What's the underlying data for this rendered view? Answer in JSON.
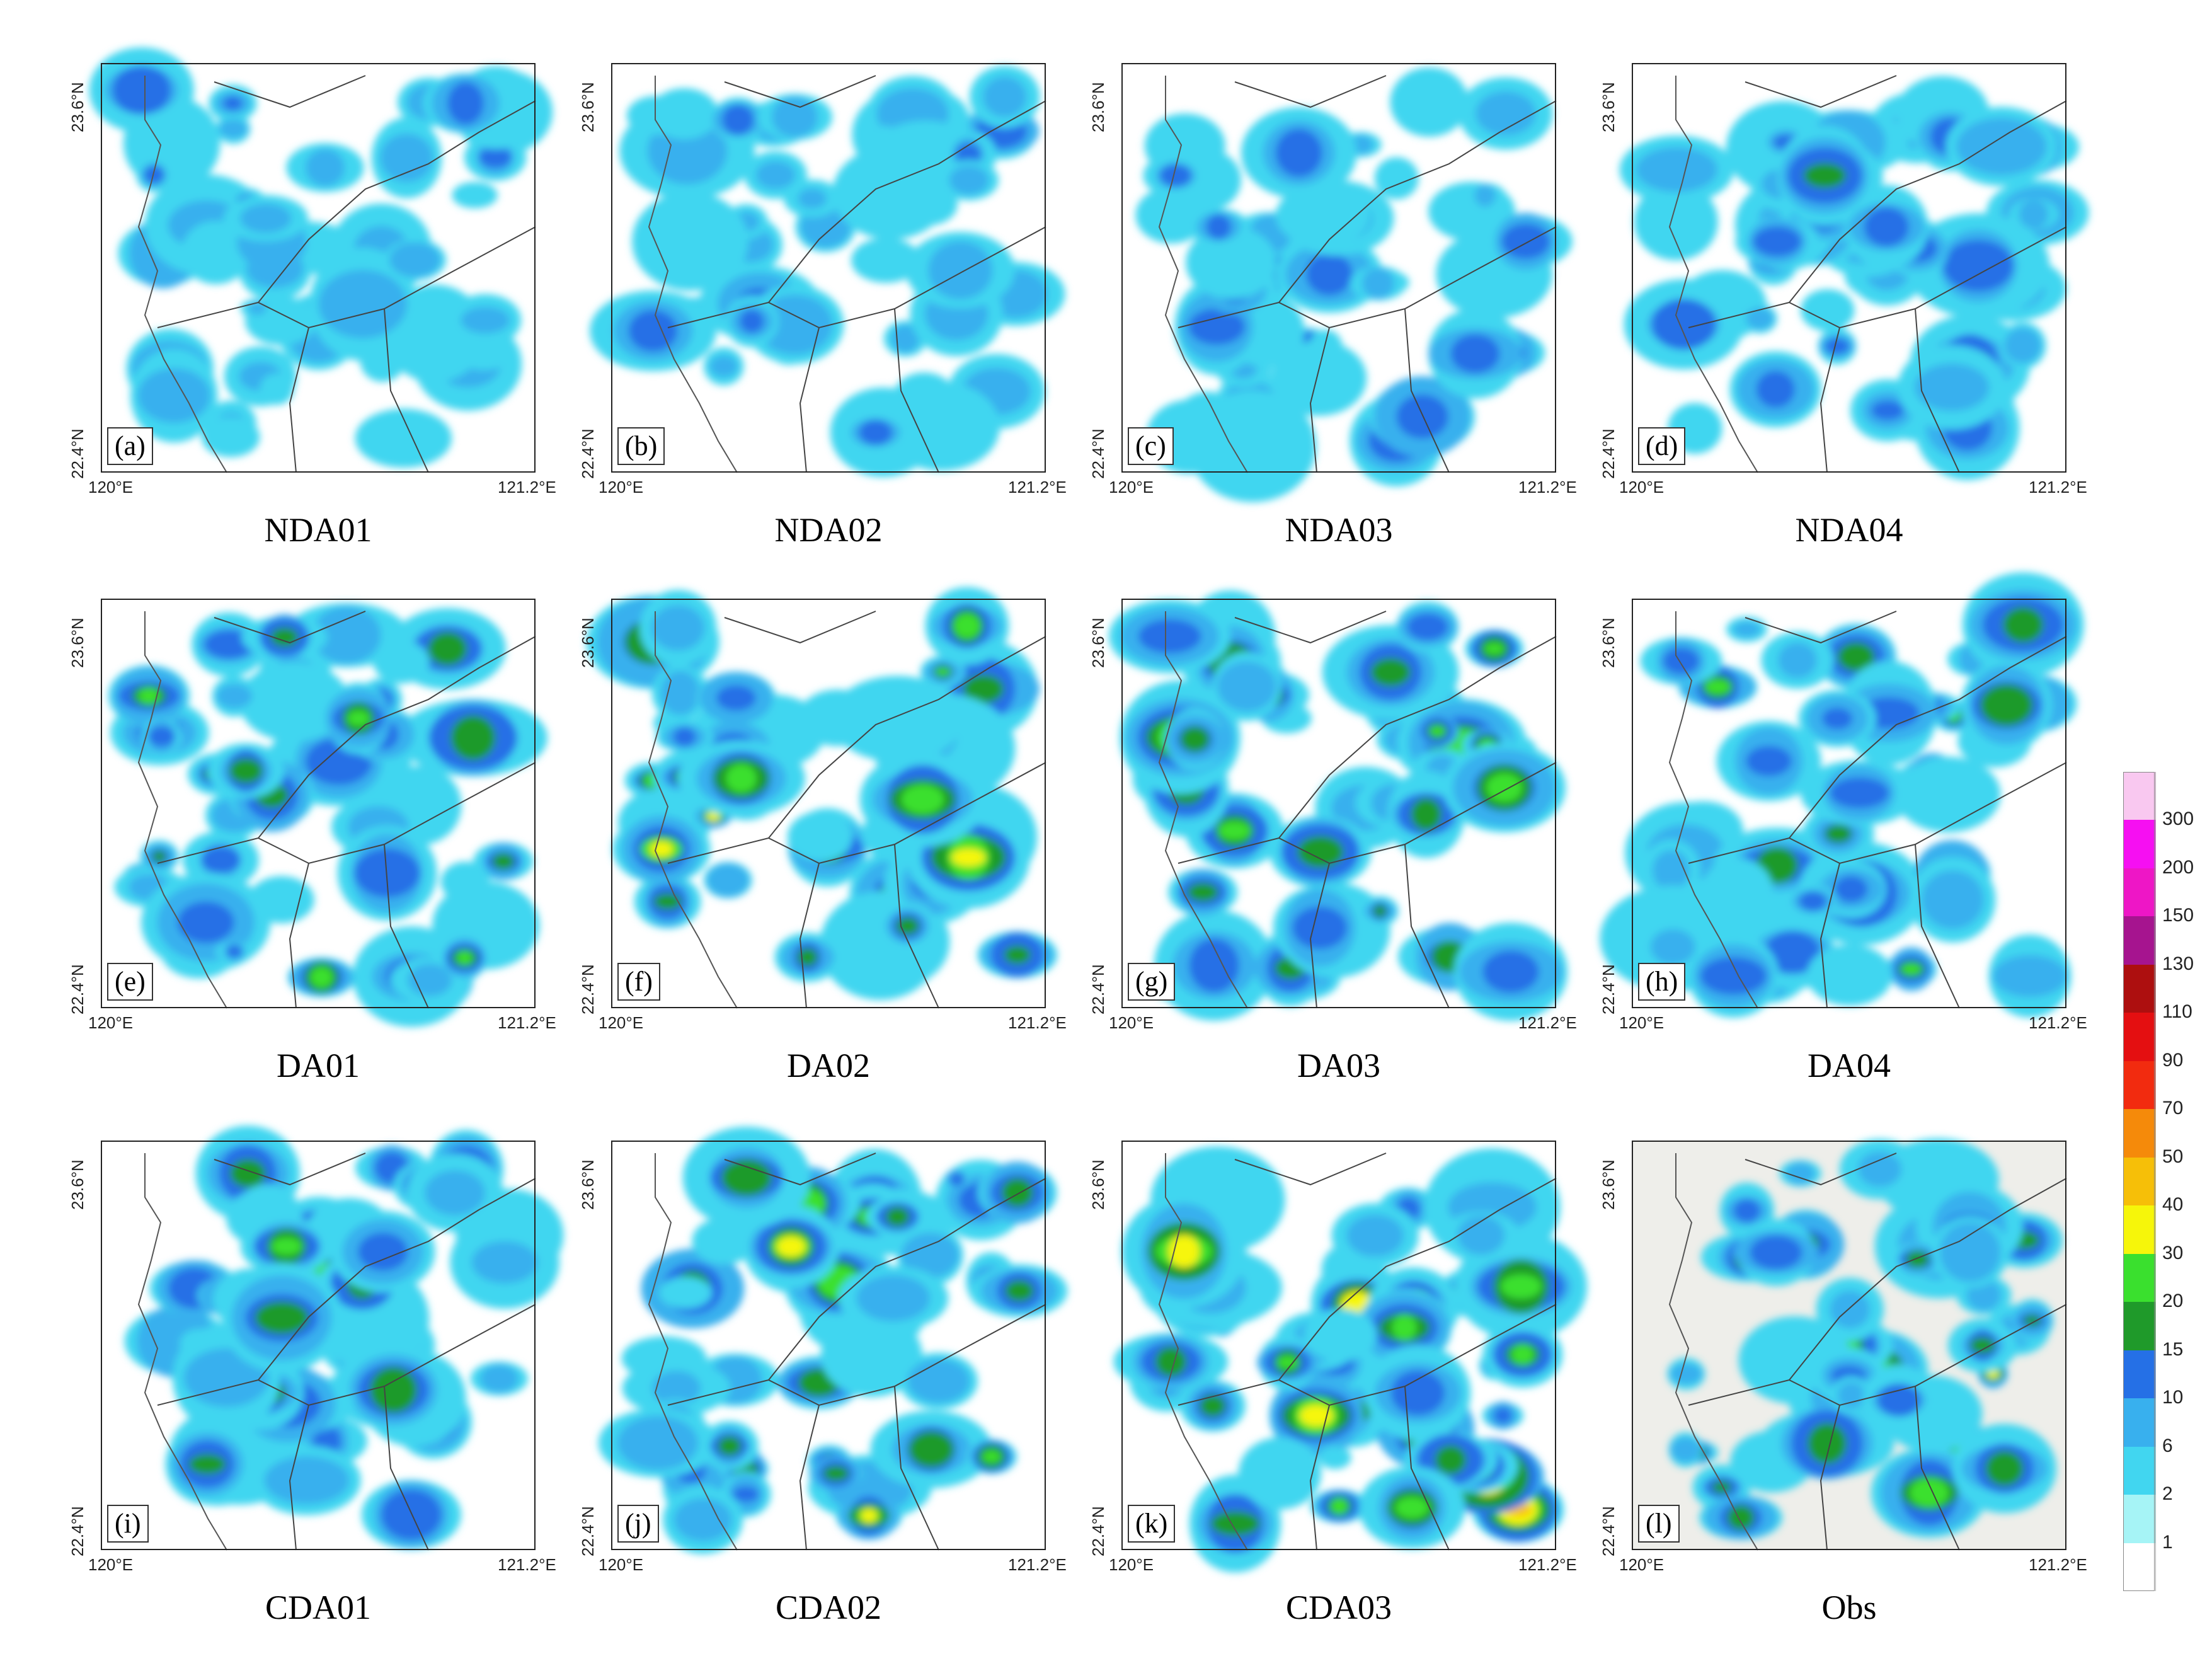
{
  "figure": {
    "panels": [
      {
        "letter": "(a)",
        "caption": "NDA01",
        "intensity": 0.8,
        "seed": 11
      },
      {
        "letter": "(b)",
        "caption": "NDA02",
        "intensity": 0.9,
        "seed": 23
      },
      {
        "letter": "(c)",
        "caption": "NDA03",
        "intensity": 1.0,
        "seed": 37
      },
      {
        "letter": "(d)",
        "caption": "NDA04",
        "intensity": 1.1,
        "seed": 41
      },
      {
        "letter": "(e)",
        "caption": "DA01",
        "intensity": 1.6,
        "seed": 53
      },
      {
        "letter": "(f)",
        "caption": "DA02",
        "intensity": 1.8,
        "seed": 67
      },
      {
        "letter": "(g)",
        "caption": "DA03",
        "intensity": 1.6,
        "seed": 71
      },
      {
        "letter": "(h)",
        "caption": "DA04",
        "intensity": 1.5,
        "seed": 83
      },
      {
        "letter": "(i)",
        "caption": "CDA01",
        "intensity": 1.5,
        "seed": 97
      },
      {
        "letter": "(j)",
        "caption": "CDA02",
        "intensity": 1.9,
        "seed": 101
      },
      {
        "letter": "(k)",
        "caption": "CDA03",
        "intensity": 2.1,
        "seed": 113
      },
      {
        "letter": "(l)",
        "caption": "Obs",
        "intensity": 1.7,
        "seed": 127,
        "observed": true
      }
    ],
    "axis_labels": {
      "lat_top": "23.6°N",
      "lat_bottom": "22.4°N",
      "lon_left": "120°E",
      "lon_right": "121.2°E"
    }
  },
  "colorbar": {
    "levels": [
      "1",
      "2",
      "6",
      "10",
      "15",
      "20",
      "30",
      "40",
      "50",
      "70",
      "90",
      "110",
      "130",
      "150",
      "200",
      "300"
    ],
    "colors": [
      "#ffffff",
      "#a6f4f6",
      "#41d6f0",
      "#38b0ee",
      "#2570e6",
      "#1f9a2a",
      "#3ae02e",
      "#f6f60a",
      "#f6bf08",
      "#f58a0a",
      "#f22b0f",
      "#e40f11",
      "#ad0f0f",
      "#a6148f",
      "#ee16c6",
      "#f60ff2",
      "#f9c8f0"
    ]
  }
}
